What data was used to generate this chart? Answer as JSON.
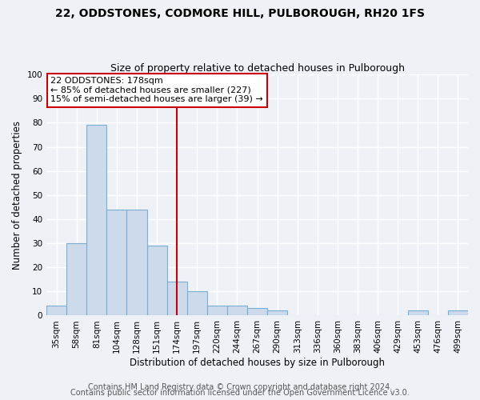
{
  "title": "22, ODDSTONES, CODMORE HILL, PULBOROUGH, RH20 1FS",
  "subtitle": "Size of property relative to detached houses in Pulborough",
  "xlabel": "Distribution of detached houses by size in Pulborough",
  "ylabel": "Number of detached properties",
  "categories": [
    "35sqm",
    "58sqm",
    "81sqm",
    "104sqm",
    "128sqm",
    "151sqm",
    "174sqm",
    "197sqm",
    "220sqm",
    "244sqm",
    "267sqm",
    "290sqm",
    "313sqm",
    "336sqm",
    "360sqm",
    "383sqm",
    "406sqm",
    "429sqm",
    "453sqm",
    "476sqm",
    "499sqm"
  ],
  "values": [
    4,
    30,
    79,
    44,
    44,
    29,
    14,
    10,
    4,
    4,
    3,
    2,
    0,
    0,
    0,
    0,
    0,
    0,
    2,
    0,
    2
  ],
  "bar_color": "#ccdaeb",
  "bar_edge_color": "#7aafd4",
  "vline_x_index": 6,
  "vline_color": "#cc0000",
  "annotation_text": "22 ODDSTONES: 178sqm\n← 85% of detached houses are smaller (227)\n15% of semi-detached houses are larger (39) →",
  "annotation_box_facecolor": "#ffffff",
  "annotation_box_edgecolor": "#cc0000",
  "ylim": [
    0,
    100
  ],
  "yticks": [
    0,
    10,
    20,
    30,
    40,
    50,
    60,
    70,
    80,
    90,
    100
  ],
  "footer_line1": "Contains HM Land Registry data © Crown copyright and database right 2024.",
  "footer_line2": "Contains public sector information licensed under the Open Government Licence v3.0.",
  "background_color": "#eef2f7",
  "grid_color": "#ffffff",
  "title_fontsize": 10,
  "subtitle_fontsize": 9,
  "axis_label_fontsize": 8.5,
  "tick_fontsize": 7.5,
  "annotation_fontsize": 8,
  "footer_fontsize": 7
}
